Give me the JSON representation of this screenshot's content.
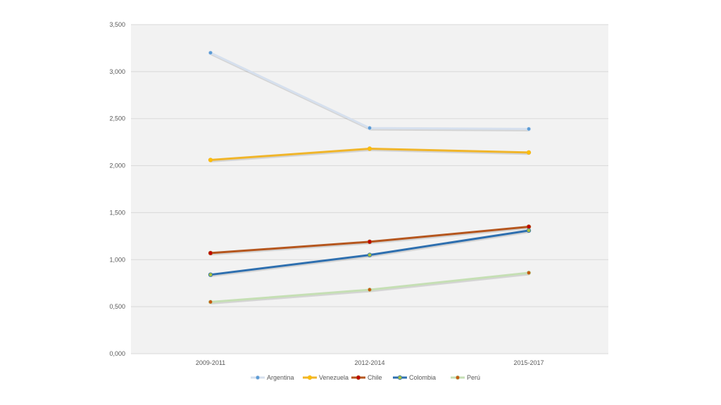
{
  "chart_data": {
    "type": "line",
    "title": "",
    "xlabel": "",
    "ylabel": "",
    "categories": [
      "2009-2011",
      "2012-2014",
      "2015-2017"
    ],
    "ylim": [
      0,
      3.5
    ],
    "y_ticks": [
      "0,000",
      "0,500",
      "1,000",
      "1,500",
      "2,000",
      "2,500",
      "3,000",
      "3,500"
    ],
    "y_tick_values": [
      0,
      0.5,
      1.0,
      1.5,
      2.0,
      2.5,
      3.0,
      3.5
    ],
    "grid": true,
    "legend_position": "bottom",
    "plot_background": "#f2f2f2",
    "series": [
      {
        "name": "Argentina",
        "values": [
          3.2,
          2.4,
          2.39
        ],
        "color": "#d6e0ee",
        "marker": "#5b9bd5"
      },
      {
        "name": "Venezuela",
        "values": [
          2.06,
          2.18,
          2.14
        ],
        "color": "#f0b52a",
        "marker": "#ffc000"
      },
      {
        "name": "Chile",
        "values": [
          1.07,
          1.19,
          1.35
        ],
        "color": "#b5561e",
        "marker": "#c00000"
      },
      {
        "name": "Colombia",
        "values": [
          0.84,
          1.05,
          1.31
        ],
        "color": "#2e6faf",
        "marker": "#a9c23f"
      },
      {
        "name": "Perú",
        "values": [
          0.55,
          0.68,
          0.86
        ],
        "color": "#c5dfb4",
        "marker": "#c55a11"
      }
    ]
  }
}
